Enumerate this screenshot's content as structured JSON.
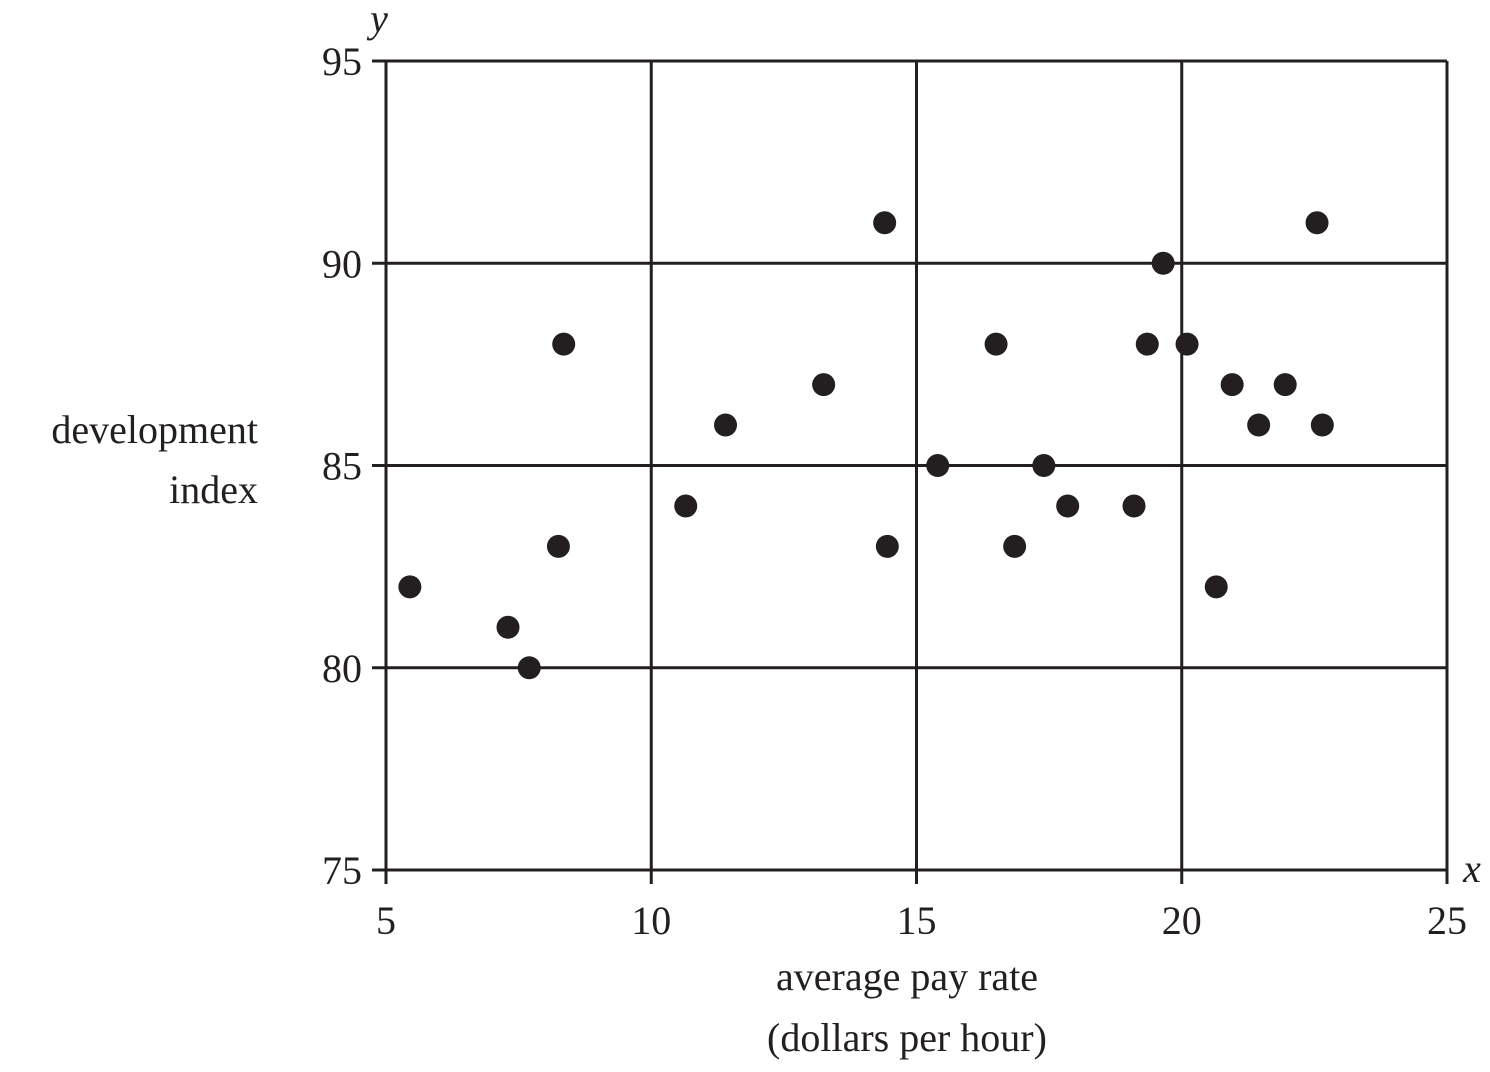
{
  "chart_data": {
    "type": "scatter",
    "title": "",
    "xlabel_lines": [
      "average pay rate",
      "(dollars per hour)"
    ],
    "ylabel_lines": [
      "development",
      "index"
    ],
    "x_var": "x",
    "y_var": "y",
    "xlim": [
      5,
      25
    ],
    "ylim": [
      75,
      95
    ],
    "xticks": [
      5,
      10,
      15,
      20,
      25
    ],
    "yticks": [
      75,
      80,
      85,
      90,
      95
    ],
    "grid": true,
    "legend": "none",
    "colors": {
      "ink": "#231f20",
      "background": "#ffffff"
    },
    "points": [
      {
        "x": 5.45,
        "y": 82
      },
      {
        "x": 7.3,
        "y": 81
      },
      {
        "x": 7.7,
        "y": 80
      },
      {
        "x": 8.25,
        "y": 83
      },
      {
        "x": 8.35,
        "y": 88
      },
      {
        "x": 10.65,
        "y": 84
      },
      {
        "x": 11.4,
        "y": 86
      },
      {
        "x": 13.25,
        "y": 87
      },
      {
        "x": 14.4,
        "y": 91
      },
      {
        "x": 14.45,
        "y": 83
      },
      {
        "x": 15.4,
        "y": 85
      },
      {
        "x": 16.5,
        "y": 88
      },
      {
        "x": 16.85,
        "y": 83
      },
      {
        "x": 17.4,
        "y": 85
      },
      {
        "x": 17.85,
        "y": 84
      },
      {
        "x": 19.1,
        "y": 84
      },
      {
        "x": 19.35,
        "y": 88
      },
      {
        "x": 19.65,
        "y": 90
      },
      {
        "x": 20.1,
        "y": 88
      },
      {
        "x": 20.65,
        "y": 82
      },
      {
        "x": 20.95,
        "y": 87
      },
      {
        "x": 21.45,
        "y": 86
      },
      {
        "x": 21.95,
        "y": 87
      },
      {
        "x": 22.55,
        "y": 91
      },
      {
        "x": 22.65,
        "y": 86
      }
    ]
  }
}
